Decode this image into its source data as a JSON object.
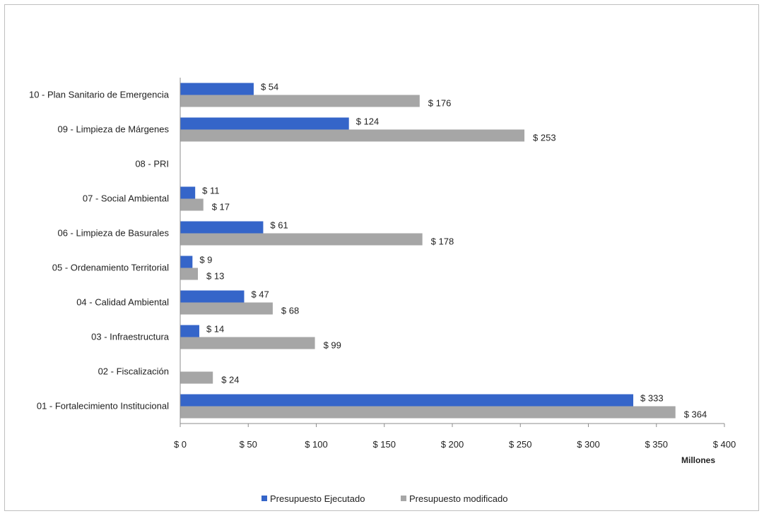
{
  "chart_data": {
    "type": "bar",
    "orientation": "horizontal",
    "categories": [
      "01 - Fortalecimiento Institucional",
      "02 - Fiscalización",
      "03 - Infraestructura",
      "04 - Calidad Ambiental",
      "05 - Ordenamiento Territorial",
      "06 - Limpieza de Basurales",
      "07 - Social Ambiental",
      "08 - PRI",
      "09 - Limpieza de Márgenes",
      "10 - Plan Sanitario de Emergencia"
    ],
    "series": [
      {
        "name": "Presupuesto Ejecutado",
        "color": "#3565c9",
        "values": [
          333,
          null,
          14,
          47,
          9,
          61,
          11,
          null,
          124,
          54
        ],
        "labels": [
          "$ 333",
          "",
          "$ 14",
          "$ 47",
          "$ 9",
          "$ 61",
          "$ 11",
          "",
          "$ 124",
          "$ 54"
        ]
      },
      {
        "name": "Presupuesto modificado",
        "color": "#a6a6a6",
        "values": [
          364,
          24,
          99,
          68,
          13,
          178,
          17,
          null,
          253,
          176
        ],
        "labels": [
          "$ 364",
          "$ 24",
          "$ 99",
          "$ 68",
          "$ 13",
          "$ 178",
          "$ 17",
          "",
          "$ 253",
          "$ 176"
        ]
      }
    ],
    "xlim": [
      0,
      400
    ],
    "xticks": [
      0,
      50,
      100,
      150,
      200,
      250,
      300,
      350,
      400
    ],
    "xtick_labels": [
      "$ 0",
      "$ 50",
      "$ 100",
      "$ 150",
      "$ 200",
      "$ 250",
      "$ 300",
      "$ 350",
      "$ 400"
    ],
    "xlabel": "Millones",
    "legend_position": "bottom",
    "grid": false
  }
}
